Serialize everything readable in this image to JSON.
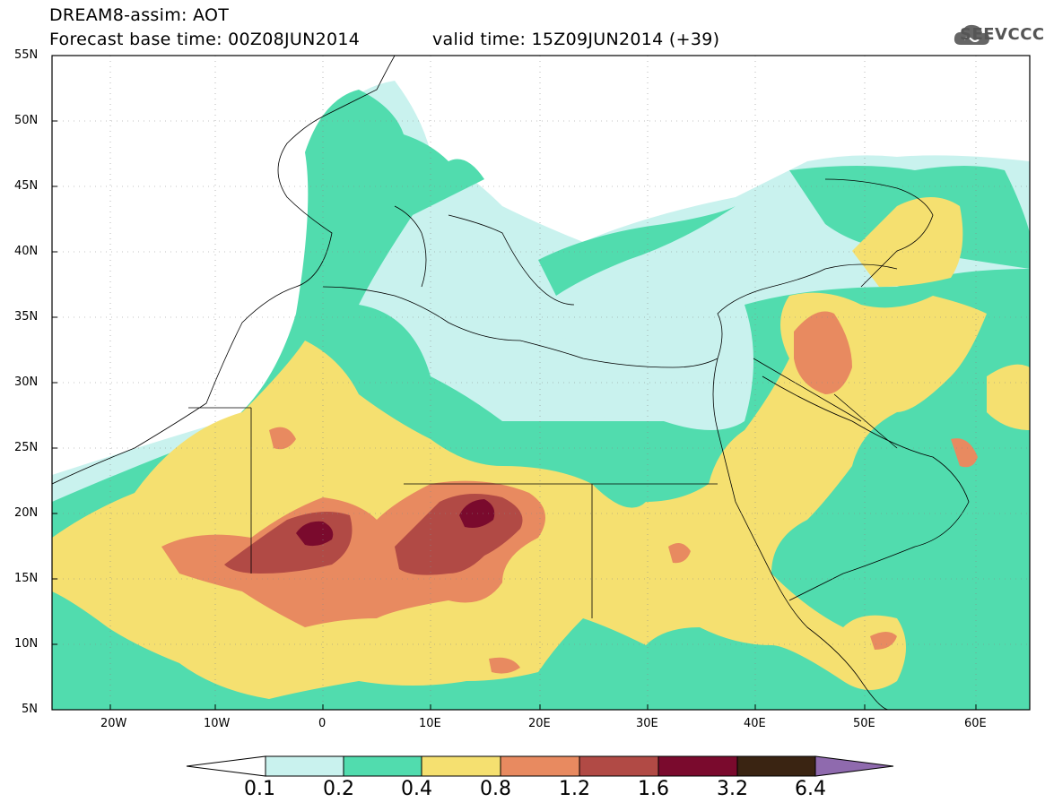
{
  "header": {
    "title": "DREAM8-assim: AOT",
    "base_time": "Forecast base time: 00Z08JUN2014",
    "valid_time": "valid time: 15Z09JUN2014 (+39)"
  },
  "logo": {
    "text": "SEEVCCC",
    "icon": "cloud-icon"
  },
  "map": {
    "lat_labels": [
      "55N",
      "50N",
      "45N",
      "40N",
      "35N",
      "30N",
      "25N",
      "20N",
      "15N",
      "10N",
      "5N"
    ],
    "lon_labels": [
      "20W",
      "10W",
      "0",
      "10E",
      "20E",
      "30E",
      "40E",
      "50E",
      "60E"
    ],
    "lat_range": [
      5,
      55
    ],
    "lon_range": [
      -25,
      65
    ],
    "grid": "dotted"
  },
  "colorbar": {
    "labels": [
      "0.1",
      "0.2",
      "0.4",
      "0.8",
      "1.2",
      "1.6",
      "3.2",
      "6.4"
    ],
    "colors": [
      "#ffffff",
      "#c9f2ee",
      "#51dcae",
      "#f5e070",
      "#e88a60",
      "#b14a45",
      "#7a0a2d",
      "#3a2412",
      "#8f6aae"
    ]
  }
}
